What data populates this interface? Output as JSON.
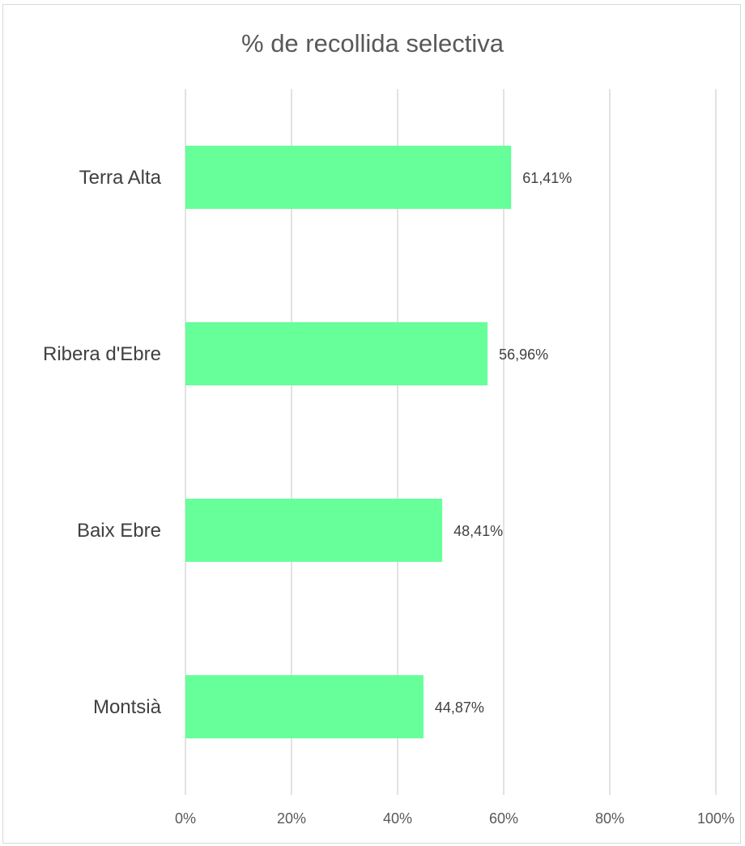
{
  "chart_data": {
    "type": "bar",
    "orientation": "horizontal",
    "title": "% de recollida selectiva",
    "categories": [
      "Terra Alta",
      "Ribera d'Ebre",
      "Baix Ebre",
      "Montsià"
    ],
    "values": [
      61.41,
      56.96,
      48.41,
      44.87
    ],
    "value_labels": [
      "61,41%",
      "56,96%",
      "48,41%",
      "44,87%"
    ],
    "xlim": [
      0,
      100
    ],
    "x_ticks": [
      "0%",
      "20%",
      "40%",
      "60%",
      "80%",
      "100%"
    ],
    "grid": true,
    "legend": "none",
    "bar_color": "#66ff99",
    "grid_color": "#d9d9d9"
  }
}
